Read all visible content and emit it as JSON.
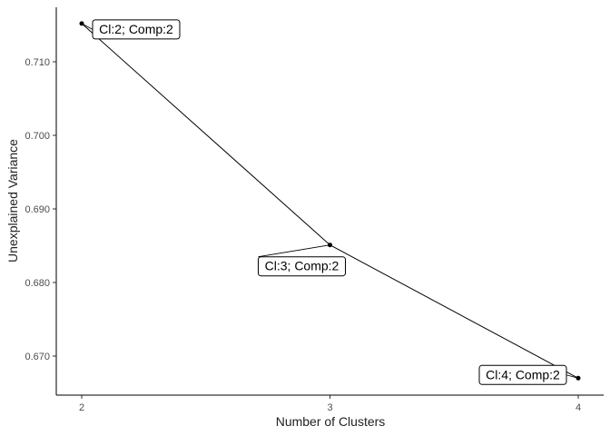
{
  "chart_data": {
    "type": "line",
    "xlabel": "Number of Clusters",
    "ylabel": "Unexplained Variance",
    "x": [
      2,
      3,
      4
    ],
    "values": [
      0.7152,
      0.6851,
      0.667
    ],
    "point_labels": [
      "Cl:2; Comp:2",
      "Cl:3; Comp:2",
      "Cl:4; Comp:2"
    ],
    "xticks": [
      "2",
      "3",
      "4"
    ],
    "yticks": [
      "0.670",
      "0.680",
      "0.690",
      "0.700",
      "0.710"
    ],
    "xlim": [
      1.9,
      4.1
    ],
    "ylim": [
      0.6647,
      0.7174
    ],
    "grid": false,
    "line_color": "#000000"
  }
}
